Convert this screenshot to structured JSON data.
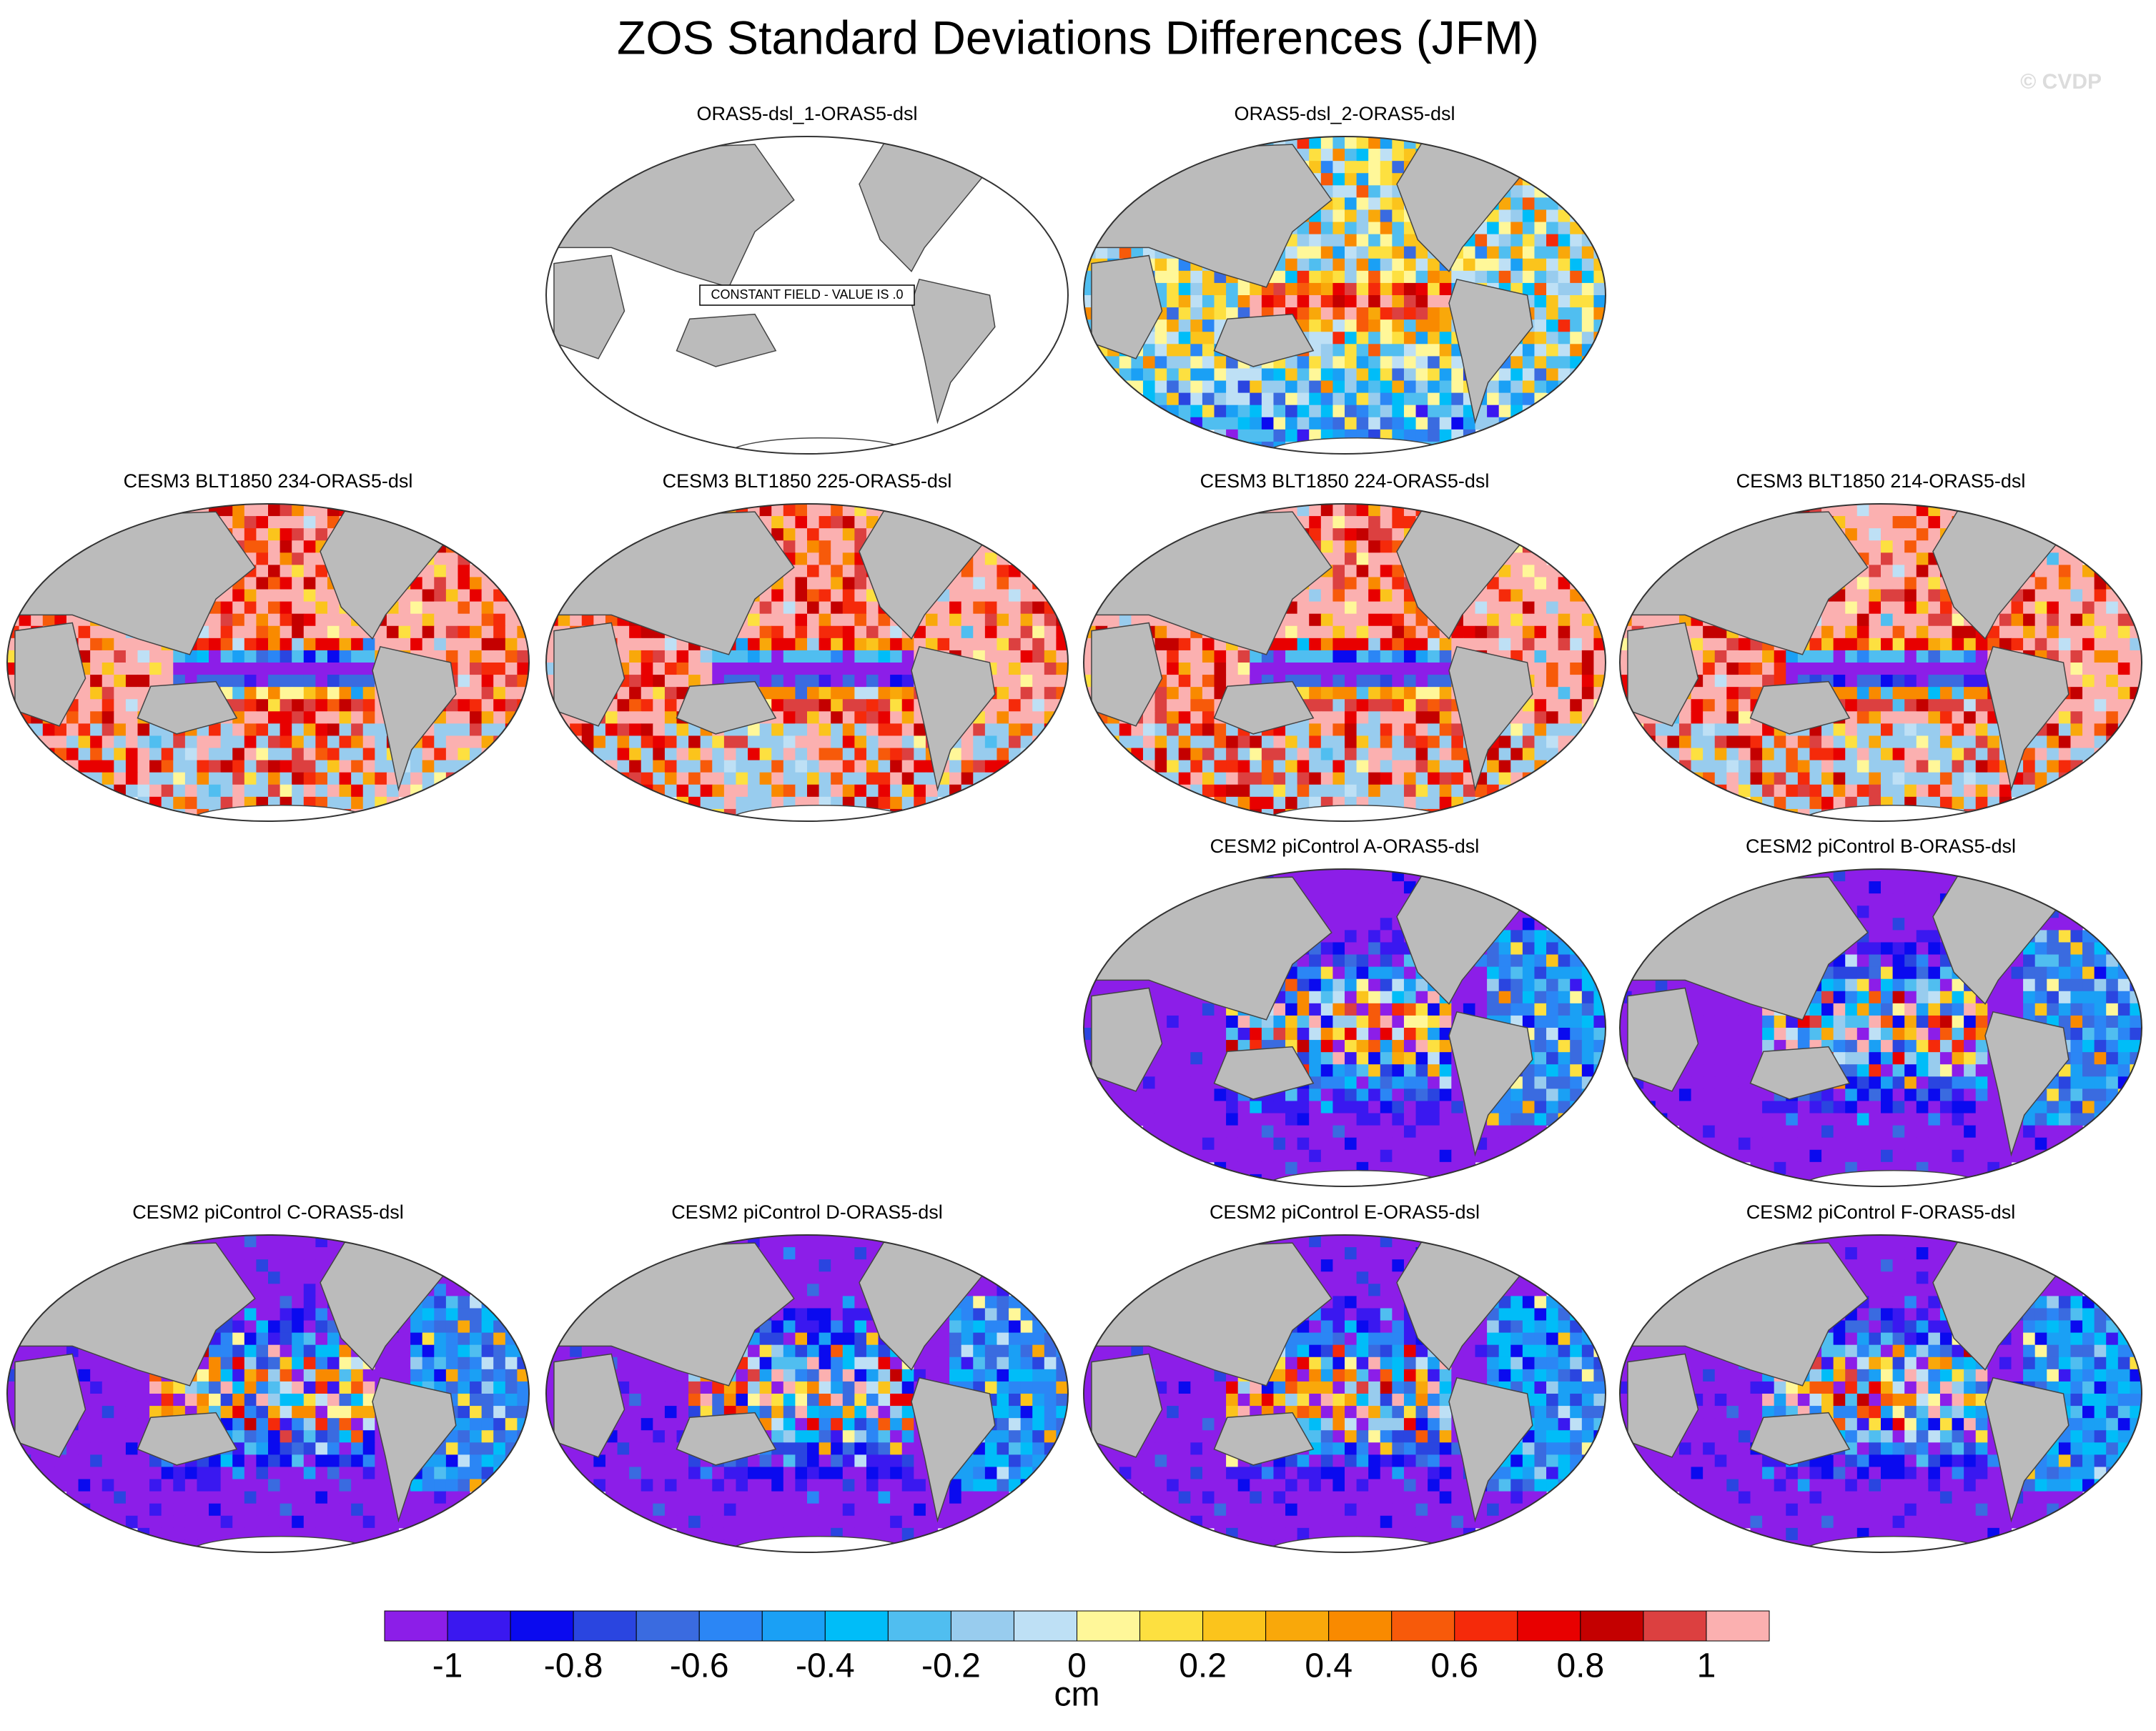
{
  "title": "ZOS Standard Deviations Differences (JFM)",
  "watermark": "© CVDP",
  "panels": [
    {
      "title": "ORAS5-dsl_1-ORAS5-dsl",
      "note": "CONSTANT FIELD - VALUE IS .0"
    },
    {
      "title": "ORAS5-dsl_2-ORAS5-dsl"
    },
    {
      "title": "CESM3 BLT1850 234-ORAS5-dsl"
    },
    {
      "title": "CESM3 BLT1850 225-ORAS5-dsl"
    },
    {
      "title": "CESM3 BLT1850 224-ORAS5-dsl"
    },
    {
      "title": "CESM3 BLT1850 214-ORAS5-dsl"
    },
    {
      "title": "CESM2 piControl A-ORAS5-dsl"
    },
    {
      "title": "CESM2 piControl B-ORAS5-dsl"
    },
    {
      "title": "CESM2 piControl C-ORAS5-dsl"
    },
    {
      "title": "CESM2 piControl D-ORAS5-dsl"
    },
    {
      "title": "CESM2 piControl E-ORAS5-dsl"
    },
    {
      "title": "CESM2 piControl F-ORAS5-dsl"
    }
  ],
  "colorbar": {
    "label": "cm",
    "lim": [
      -1.1,
      1.1
    ],
    "ticks": [
      -1,
      -0.8,
      -0.6,
      -0.4,
      -0.2,
      0,
      0.2,
      0.4,
      0.6,
      0.8,
      1
    ],
    "colors": [
      "#8c1ee8",
      "#3a18f0",
      "#0a0aef",
      "#2a45e0",
      "#3a6be0",
      "#2b86f5",
      "#1aa0f5",
      "#00bdf8",
      "#50bef0",
      "#98ccee",
      "#bee0f5",
      "#fff799",
      "#fde040",
      "#fbc41c",
      "#f9a80a",
      "#f98a00",
      "#f75a0a",
      "#f52a0a",
      "#e80000",
      "#c40000",
      "#dc4040",
      "#fbb0b0"
    ]
  }
}
